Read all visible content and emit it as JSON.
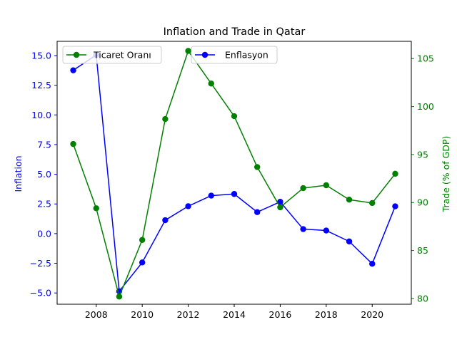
{
  "chart_data": {
    "type": "line",
    "title": "Inflation and Trade in Qatar",
    "x": [
      2007,
      2008,
      2009,
      2010,
      2011,
      2012,
      2013,
      2014,
      2015,
      2016,
      2017,
      2018,
      2019,
      2020,
      2021
    ],
    "x_ticks": [
      2008,
      2010,
      2012,
      2014,
      2016,
      2018,
      2020
    ],
    "xlim": [
      2006.3,
      2021.7
    ],
    "left_axis": {
      "label": "Inflation",
      "color": "#0000ff",
      "ylim": [
        -5.95,
        16.2
      ],
      "ticks": [
        -5.0,
        -2.5,
        0.0,
        2.5,
        5.0,
        7.5,
        10.0,
        12.5,
        15.0
      ],
      "tick_labels": [
        "−5.0",
        "−2.5",
        "0.0",
        "2.5",
        "5.0",
        "7.5",
        "10.0",
        "12.5",
        "15.0"
      ]
    },
    "right_axis": {
      "label": "Trade (% of GDP)",
      "color": "#008000",
      "ylim": [
        79.4,
        106.8
      ],
      "ticks": [
        80,
        85,
        90,
        95,
        100,
        105
      ],
      "tick_labels": [
        "80",
        "85",
        "90",
        "95",
        "100",
        "105"
      ]
    },
    "series": [
      {
        "name": "Enflasyon",
        "axis": "left",
        "color": "#0000ff",
        "values": [
          13.76,
          15.05,
          -4.86,
          -2.43,
          1.13,
          2.31,
          3.2,
          3.34,
          1.81,
          2.68,
          0.38,
          0.26,
          -0.66,
          -2.54,
          2.3
        ]
      },
      {
        "name": "Ticaret Oranı",
        "axis": "right",
        "color": "#008000",
        "values": [
          96.1,
          89.4,
          80.2,
          86.1,
          98.7,
          105.8,
          102.4,
          99.0,
          93.7,
          89.5,
          91.5,
          91.8,
          90.3,
          89.95,
          93.0
        ]
      }
    ],
    "grid": false,
    "legend_placement": "top-left"
  }
}
